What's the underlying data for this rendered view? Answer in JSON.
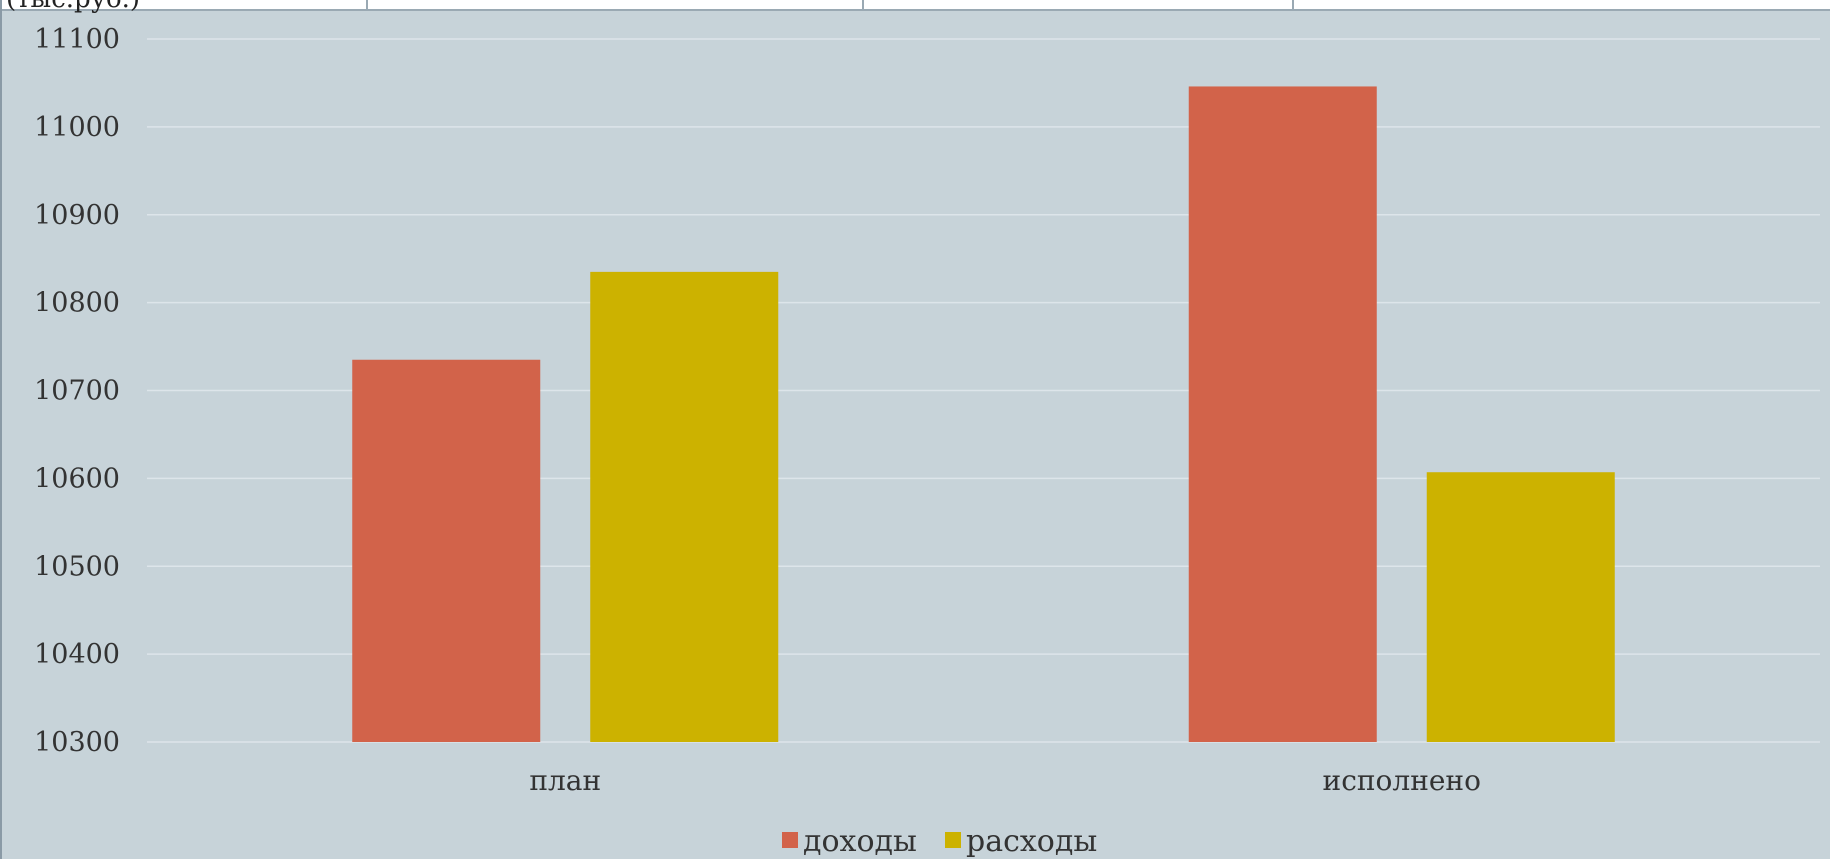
{
  "header": {
    "clipped_text": "(тыс.руб.)"
  },
  "colors": {
    "background": "#c7d3d9",
    "gridline": "#dde5ea",
    "series_income": "#d2634a",
    "series_expense": "#ccb200"
  },
  "chart_data": {
    "type": "bar",
    "categories": [
      "план",
      "исполнено"
    ],
    "series": [
      {
        "name": "доходы",
        "values": [
          10735,
          11046
        ]
      },
      {
        "name": "расходы",
        "values": [
          10835,
          10607
        ]
      }
    ],
    "ylim": [
      10300,
      11100
    ],
    "yticks": [
      10300,
      10400,
      10500,
      10600,
      10700,
      10800,
      10900,
      11000,
      11100
    ],
    "grid": true,
    "legend": "bottom"
  }
}
